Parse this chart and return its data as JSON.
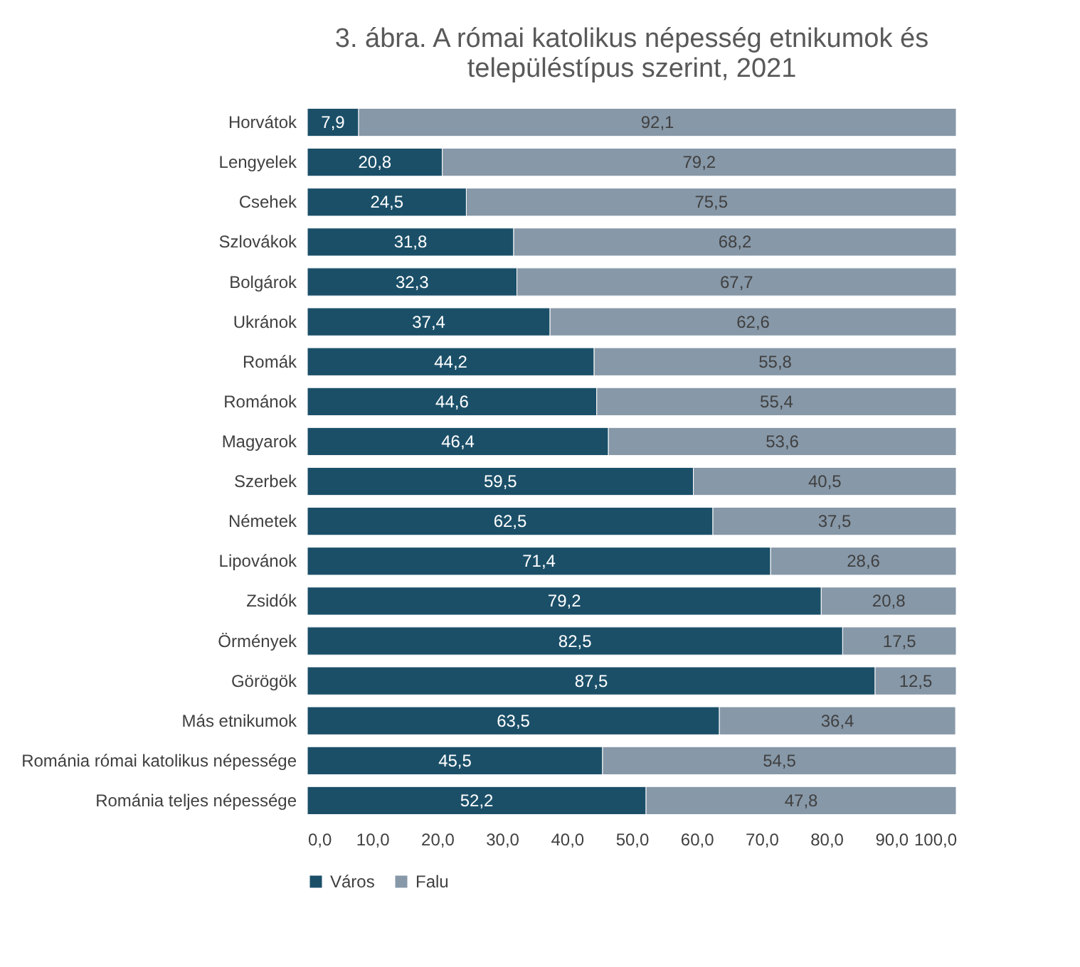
{
  "chart_data": {
    "type": "bar",
    "orientation": "horizontal",
    "stacked": true,
    "title": "3. ábra. A római katolikus népesség etnikumok és településtípus szerint, 2021",
    "categories": [
      "Horvátok",
      "Lengyelek",
      "Csehek",
      "Szlovákok",
      "Bolgárok",
      "Ukránok",
      "Romák",
      "Románok",
      "Magyarok",
      "Szerbek",
      "Németek",
      "Lipovánok",
      "Zsidók",
      "Örmények",
      "Görögök",
      "Más etnikumok",
      "Románia római katolikus népessége",
      "Románia teljes népessége"
    ],
    "series": [
      {
        "name": "Város",
        "color": "#1b4f68",
        "values": [
          7.9,
          20.8,
          24.5,
          31.8,
          32.3,
          37.4,
          44.2,
          44.6,
          46.4,
          59.5,
          62.5,
          71.4,
          79.2,
          82.5,
          87.5,
          63.5,
          45.5,
          52.2
        ],
        "value_labels": [
          "7,9",
          "20,8",
          "24,5",
          "31,8",
          "32,3",
          "37,4",
          "44,2",
          "44,6",
          "46,4",
          "59,5",
          "62,5",
          "71,4",
          "79,2",
          "82,5",
          "87,5",
          "63,5",
          "45,5",
          "52,2"
        ]
      },
      {
        "name": "Falu",
        "color": "#8798a8",
        "values": [
          92.1,
          79.2,
          75.5,
          68.2,
          67.7,
          62.6,
          55.8,
          55.4,
          53.6,
          40.5,
          37.5,
          28.6,
          20.8,
          17.5,
          12.5,
          36.4,
          54.5,
          47.8
        ],
        "value_labels": [
          "92,1",
          "79,2",
          "75,5",
          "68,2",
          "67,7",
          "62,6",
          "55,8",
          "55,4",
          "53,6",
          "40,5",
          "37,5",
          "28,6",
          "20,8",
          "17,5",
          "12,5",
          "36,4",
          "54,5",
          "47,8"
        ]
      }
    ],
    "xlim": [
      0,
      100
    ],
    "xticks": [
      {
        "value": 0,
        "label": "0,0"
      },
      {
        "value": 10,
        "label": "10,0"
      },
      {
        "value": 20,
        "label": "20,0"
      },
      {
        "value": 30,
        "label": "30,0"
      },
      {
        "value": 40,
        "label": "40,0"
      },
      {
        "value": 50,
        "label": "50,0"
      },
      {
        "value": 60,
        "label": "60,0"
      },
      {
        "value": 70,
        "label": "70,0"
      },
      {
        "value": 80,
        "label": "80,0"
      },
      {
        "value": 90,
        "label": "90,0"
      },
      {
        "value": 100,
        "label": "100,0"
      }
    ],
    "legend": "bottom"
  }
}
